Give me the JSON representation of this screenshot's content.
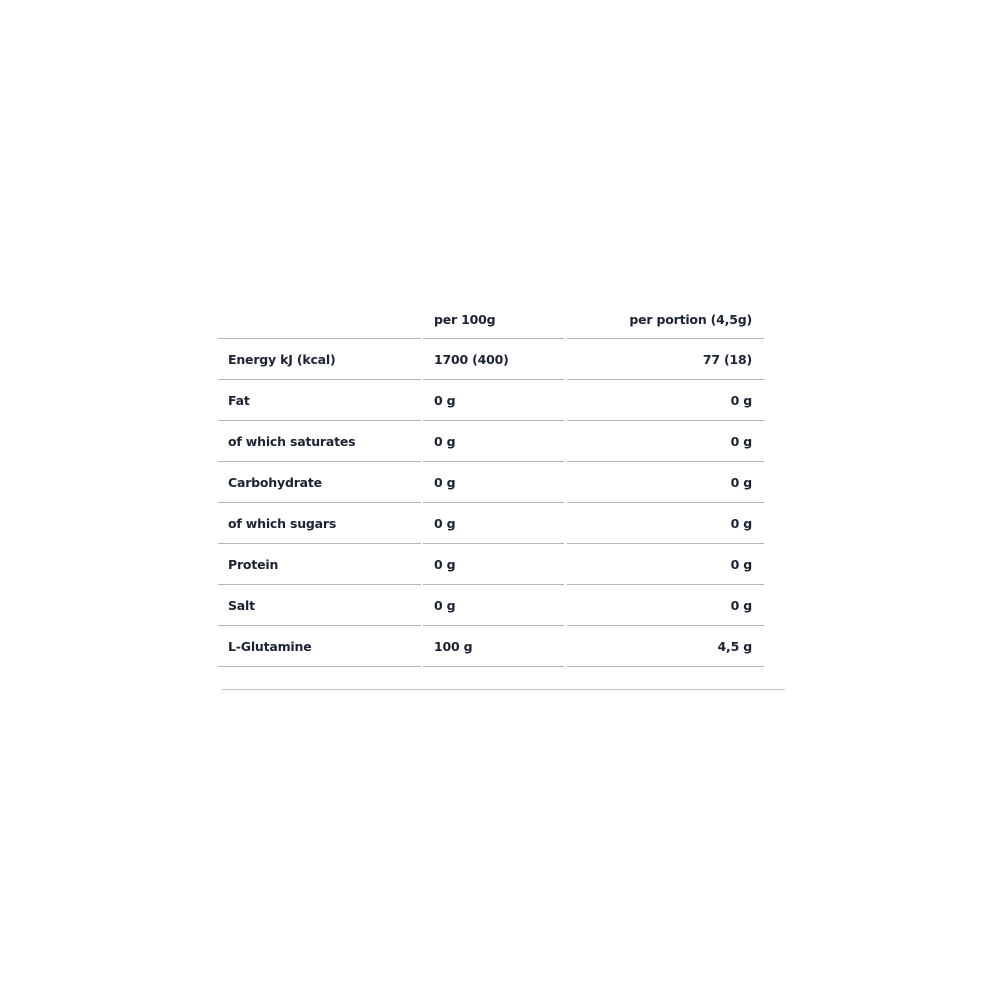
{
  "table": {
    "headers": [
      "",
      "per 100g",
      "per portion (4,5g)"
    ],
    "rows": [
      [
        "Energy kJ (kcal)",
        "1700 (400)",
        "77 (18)"
      ],
      [
        "Fat",
        "0 g",
        "0 g"
      ],
      [
        "of which saturates",
        "0 g",
        "0 g"
      ],
      [
        "Carbohydrate",
        "0 g",
        "0 g"
      ],
      [
        "of which sugars",
        "0 g",
        "0 g"
      ],
      [
        "Protein",
        "0 g",
        "0 g"
      ],
      [
        "Salt",
        "0 g",
        "0 g"
      ],
      [
        "L-Glutamine",
        "100 g",
        "4,5 g"
      ]
    ]
  },
  "colors": {
    "text": "#1b2433",
    "rule": "#b4b4b4"
  }
}
